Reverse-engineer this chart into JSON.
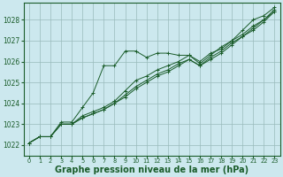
{
  "bg_color": "#cce8ee",
  "grid_color": "#99bbbb",
  "line_color": "#1a5c2a",
  "xlabel": "Graphe pression niveau de la mer (hPa)",
  "xlabel_fontsize": 7.0,
  "xlim": [
    -0.5,
    23.5
  ],
  "ylim": [
    1021.5,
    1028.8
  ],
  "yticks": [
    1022,
    1023,
    1024,
    1025,
    1026,
    1027,
    1028
  ],
  "xticks": [
    0,
    1,
    2,
    3,
    4,
    5,
    6,
    7,
    8,
    9,
    10,
    11,
    12,
    13,
    14,
    15,
    16,
    17,
    18,
    19,
    20,
    21,
    22,
    23
  ],
  "series": [
    [
      1022.1,
      1022.4,
      1022.4,
      1023.1,
      1023.1,
      1023.8,
      1024.5,
      1025.8,
      1025.8,
      1026.5,
      1026.5,
      1026.2,
      1026.4,
      1026.4,
      1026.3,
      1026.3,
      1025.9,
      1026.3,
      1026.7,
      1027.0,
      1027.5,
      1028.0,
      1028.2,
      1028.6
    ],
    [
      1022.1,
      1022.4,
      1022.4,
      1023.0,
      1023.0,
      1023.4,
      1023.6,
      1023.8,
      1024.1,
      1024.6,
      1025.1,
      1025.3,
      1025.6,
      1025.8,
      1026.0,
      1026.3,
      1026.0,
      1026.4,
      1026.6,
      1027.0,
      1027.3,
      1027.7,
      1028.0,
      1028.5
    ],
    [
      1022.1,
      1022.4,
      1022.4,
      1023.0,
      1023.0,
      1023.3,
      1023.5,
      1023.7,
      1024.0,
      1024.4,
      1024.8,
      1025.1,
      1025.4,
      1025.6,
      1025.9,
      1026.1,
      1025.8,
      1026.2,
      1026.5,
      1026.9,
      1027.2,
      1027.6,
      1028.0,
      1028.4
    ],
    [
      1022.1,
      1022.4,
      1022.4,
      1023.0,
      1023.0,
      1023.3,
      1023.5,
      1023.7,
      1024.0,
      1024.3,
      1024.7,
      1025.0,
      1025.3,
      1025.5,
      1025.8,
      1026.1,
      1025.8,
      1026.1,
      1026.4,
      1026.8,
      1027.2,
      1027.5,
      1027.9,
      1028.4
    ]
  ]
}
